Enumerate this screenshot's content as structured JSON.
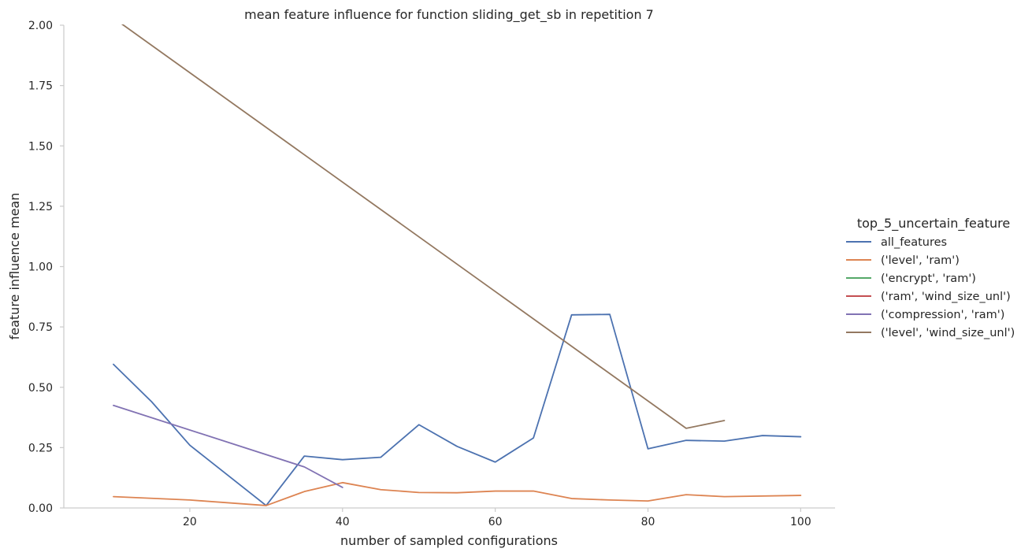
{
  "chart_data": {
    "type": "line",
    "title": "mean feature influence for function sliding_get_sb in repetition 7",
    "xlabel": "number of sampled configurations",
    "ylabel": "feature influence mean",
    "xlim": [
      3.5,
      104.5
    ],
    "ylim": [
      0,
      2.0
    ],
    "xticks": [
      20,
      40,
      60,
      80,
      100
    ],
    "yticks": [
      0.0,
      0.25,
      0.5,
      0.75,
      1.0,
      1.25,
      1.5,
      1.75,
      2.0
    ],
    "ytick_labels": [
      "0.00",
      "0.25",
      "0.50",
      "0.75",
      "1.00",
      "1.25",
      "1.50",
      "1.75",
      "2.00"
    ],
    "grid": false,
    "legend_title": "top_5_uncertain_feature",
    "legend_position": "right",
    "series": [
      {
        "name": "all_features",
        "color": "#4c72b0",
        "x": [
          10,
          15,
          20,
          30,
          35,
          40,
          45,
          50,
          55,
          60,
          65,
          70,
          75,
          80,
          85,
          90,
          95,
          100
        ],
        "y": [
          0.595,
          0.44,
          0.26,
          0.01,
          0.215,
          0.2,
          0.21,
          0.345,
          0.255,
          0.19,
          0.29,
          0.8,
          0.802,
          0.245,
          0.28,
          0.277,
          0.3,
          0.295
        ]
      },
      {
        "name": "('level', 'ram')",
        "color": "#dd8452",
        "x": [
          10,
          20,
          30,
          35,
          40,
          45,
          50,
          55,
          60,
          65,
          70,
          75,
          80,
          85,
          90,
          100
        ],
        "y": [
          0.047,
          0.033,
          0.01,
          0.068,
          0.105,
          0.076,
          0.064,
          0.063,
          0.07,
          0.07,
          0.039,
          0.033,
          0.029,
          0.055,
          0.047,
          0.052
        ]
      },
      {
        "name": "('encrypt', 'ram')",
        "color": "#55a868",
        "x": [],
        "y": []
      },
      {
        "name": "('ram', 'wind_size_unl')",
        "color": "#c44e52",
        "x": [],
        "y": []
      },
      {
        "name": "('compression', 'ram')",
        "color": "#8172b3",
        "x": [
          10,
          35,
          40
        ],
        "y": [
          0.425,
          0.17,
          0.085
        ]
      },
      {
        "name": "('level', 'wind_size_unl')",
        "color": "#937860",
        "x": [
          10,
          85,
          90
        ],
        "y": [
          2.03,
          0.33,
          0.362
        ]
      }
    ]
  }
}
